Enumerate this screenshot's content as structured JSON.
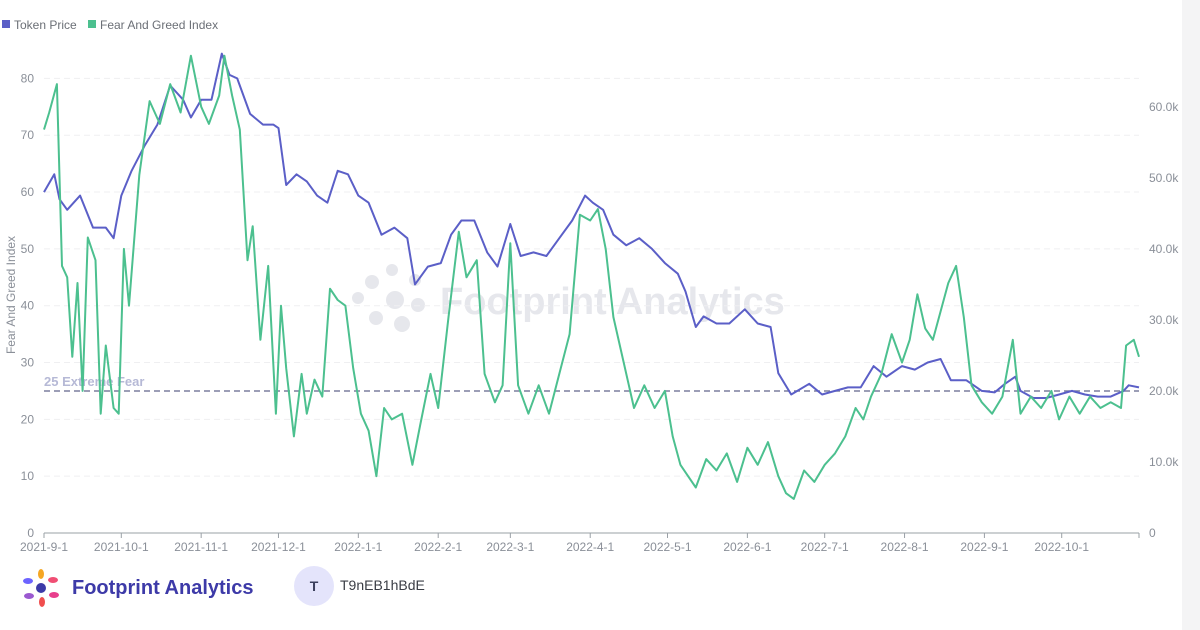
{
  "chart_data": {
    "type": "line",
    "legend_placement": "top-left",
    "grid": true,
    "y_left": {
      "label": "Fear And Greed Index",
      "range": [
        0,
        85
      ],
      "ticks": [
        0,
        10,
        20,
        30,
        40,
        50,
        60,
        70,
        80
      ]
    },
    "y_right": {
      "label": "",
      "range": [
        0,
        68000
      ],
      "ticks": [
        "0",
        "10.0k",
        "20.0k",
        "30.0k",
        "40.0k",
        "50.0k",
        "60.0k"
      ]
    },
    "x_range": [
      "2021-09-01",
      "2022-10-31"
    ],
    "x_ticks": [
      "2021-9-1",
      "2021-10-1",
      "2021-11-1",
      "2021-12-1",
      "2022-1-1",
      "2022-2-1",
      "2022-3-1",
      "2022-4-1",
      "2022-5-1",
      "2022-6-1",
      "2022-7-1",
      "2022-8-1",
      "2022-9-1",
      "2022-10-1"
    ],
    "reference_line": {
      "value": 25,
      "label": "25 Extreme Fear",
      "axis": "left"
    },
    "series": [
      {
        "name": "Token Price",
        "axis": "right",
        "color": "#5b5fc7",
        "points": [
          [
            "2021-09-01",
            48000
          ],
          [
            "2021-09-05",
            50500
          ],
          [
            "2021-09-07",
            47000
          ],
          [
            "2021-09-10",
            45500
          ],
          [
            "2021-09-15",
            47500
          ],
          [
            "2021-09-20",
            43000
          ],
          [
            "2021-09-25",
            43000
          ],
          [
            "2021-09-28",
            41500
          ],
          [
            "2021-10-01",
            47500
          ],
          [
            "2021-10-05",
            51000
          ],
          [
            "2021-10-10",
            54500
          ],
          [
            "2021-10-15",
            57500
          ],
          [
            "2021-10-20",
            63000
          ],
          [
            "2021-10-25",
            61000
          ],
          [
            "2021-10-28",
            58500
          ],
          [
            "2021-11-01",
            61000
          ],
          [
            "2021-11-05",
            61000
          ],
          [
            "2021-11-09",
            67500
          ],
          [
            "2021-11-12",
            64500
          ],
          [
            "2021-11-15",
            64000
          ],
          [
            "2021-11-20",
            59000
          ],
          [
            "2021-11-25",
            57500
          ],
          [
            "2021-11-29",
            57500
          ],
          [
            "2021-12-01",
            57000
          ],
          [
            "2021-12-04",
            49000
          ],
          [
            "2021-12-08",
            50500
          ],
          [
            "2021-12-12",
            49500
          ],
          [
            "2021-12-16",
            47500
          ],
          [
            "2021-12-20",
            46500
          ],
          [
            "2021-12-24",
            51000
          ],
          [
            "2021-12-28",
            50500
          ],
          [
            "2022-01-01",
            47500
          ],
          [
            "2022-01-05",
            46500
          ],
          [
            "2022-01-10",
            42000
          ],
          [
            "2022-01-15",
            43000
          ],
          [
            "2022-01-20",
            41500
          ],
          [
            "2022-01-23",
            35000
          ],
          [
            "2022-01-28",
            37500
          ],
          [
            "2022-02-02",
            38000
          ],
          [
            "2022-02-06",
            42000
          ],
          [
            "2022-02-10",
            44000
          ],
          [
            "2022-02-15",
            44000
          ],
          [
            "2022-02-20",
            39500
          ],
          [
            "2022-02-24",
            37500
          ],
          [
            "2022-03-01",
            43500
          ],
          [
            "2022-03-05",
            39000
          ],
          [
            "2022-03-10",
            39500
          ],
          [
            "2022-03-15",
            39000
          ],
          [
            "2022-03-20",
            41500
          ],
          [
            "2022-03-25",
            44000
          ],
          [
            "2022-03-30",
            47500
          ],
          [
            "2022-04-02",
            46500
          ],
          [
            "2022-04-06",
            45500
          ],
          [
            "2022-04-10",
            42000
          ],
          [
            "2022-04-15",
            40500
          ],
          [
            "2022-04-20",
            41500
          ],
          [
            "2022-04-25",
            40000
          ],
          [
            "2022-04-30",
            38000
          ],
          [
            "2022-05-05",
            36500
          ],
          [
            "2022-05-08",
            34000
          ],
          [
            "2022-05-12",
            29000
          ],
          [
            "2022-05-15",
            30500
          ],
          [
            "2022-05-20",
            29500
          ],
          [
            "2022-05-25",
            29500
          ],
          [
            "2022-05-31",
            31500
          ],
          [
            "2022-06-05",
            29500
          ],
          [
            "2022-06-10",
            29000
          ],
          [
            "2022-06-13",
            22500
          ],
          [
            "2022-06-18",
            19500
          ],
          [
            "2022-06-25",
            21000
          ],
          [
            "2022-06-30",
            19500
          ],
          [
            "2022-07-05",
            20000
          ],
          [
            "2022-07-10",
            20500
          ],
          [
            "2022-07-15",
            20500
          ],
          [
            "2022-07-20",
            23500
          ],
          [
            "2022-07-25",
            22000
          ],
          [
            "2022-07-31",
            23500
          ],
          [
            "2022-08-05",
            23000
          ],
          [
            "2022-08-10",
            24000
          ],
          [
            "2022-08-15",
            24500
          ],
          [
            "2022-08-19",
            21500
          ],
          [
            "2022-08-25",
            21500
          ],
          [
            "2022-08-31",
            20000
          ],
          [
            "2022-09-05",
            19800
          ],
          [
            "2022-09-09",
            21000
          ],
          [
            "2022-09-13",
            22000
          ],
          [
            "2022-09-15",
            20000
          ],
          [
            "2022-09-20",
            19000
          ],
          [
            "2022-09-25",
            19000
          ],
          [
            "2022-09-30",
            19500
          ],
          [
            "2022-10-05",
            20000
          ],
          [
            "2022-10-10",
            19500
          ],
          [
            "2022-10-15",
            19200
          ],
          [
            "2022-10-20",
            19200
          ],
          [
            "2022-10-25",
            20000
          ],
          [
            "2022-10-27",
            20800
          ],
          [
            "2022-10-31",
            20500
          ]
        ]
      },
      {
        "name": "Fear And Greed Index",
        "axis": "left",
        "color": "#4cc08f",
        "points": [
          [
            "2021-09-01",
            71
          ],
          [
            "2021-09-03",
            74
          ],
          [
            "2021-09-06",
            79
          ],
          [
            "2021-09-08",
            47
          ],
          [
            "2021-09-10",
            45
          ],
          [
            "2021-09-12",
            31
          ],
          [
            "2021-09-14",
            44
          ],
          [
            "2021-09-16",
            25
          ],
          [
            "2021-09-18",
            52
          ],
          [
            "2021-09-21",
            48
          ],
          [
            "2021-09-23",
            21
          ],
          [
            "2021-09-25",
            33
          ],
          [
            "2021-09-28",
            22
          ],
          [
            "2021-09-30",
            21
          ],
          [
            "2021-10-02",
            50
          ],
          [
            "2021-10-04",
            40
          ],
          [
            "2021-10-08",
            63
          ],
          [
            "2021-10-12",
            76
          ],
          [
            "2021-10-16",
            72
          ],
          [
            "2021-10-20",
            79
          ],
          [
            "2021-10-24",
            74
          ],
          [
            "2021-10-28",
            84
          ],
          [
            "2021-11-01",
            75
          ],
          [
            "2021-11-04",
            72
          ],
          [
            "2021-11-08",
            77
          ],
          [
            "2021-11-10",
            84
          ],
          [
            "2021-11-13",
            77
          ],
          [
            "2021-11-16",
            71
          ],
          [
            "2021-11-19",
            48
          ],
          [
            "2021-11-21",
            54
          ],
          [
            "2021-11-24",
            34
          ],
          [
            "2021-11-27",
            47
          ],
          [
            "2021-11-30",
            21
          ],
          [
            "2021-12-02",
            40
          ],
          [
            "2021-12-04",
            29
          ],
          [
            "2021-12-07",
            17
          ],
          [
            "2021-12-10",
            28
          ],
          [
            "2021-12-12",
            21
          ],
          [
            "2021-12-15",
            27
          ],
          [
            "2021-12-18",
            24
          ],
          [
            "2021-12-21",
            43
          ],
          [
            "2021-12-24",
            41
          ],
          [
            "2021-12-27",
            40
          ],
          [
            "2021-12-30",
            29
          ],
          [
            "2022-01-02",
            21
          ],
          [
            "2022-01-05",
            18
          ],
          [
            "2022-01-08",
            10
          ],
          [
            "2022-01-11",
            22
          ],
          [
            "2022-01-14",
            20
          ],
          [
            "2022-01-18",
            21
          ],
          [
            "2022-01-22",
            12
          ],
          [
            "2022-01-25",
            19
          ],
          [
            "2022-01-29",
            28
          ],
          [
            "2022-02-01",
            22
          ],
          [
            "2022-02-05",
            38
          ],
          [
            "2022-02-09",
            53
          ],
          [
            "2022-02-12",
            45
          ],
          [
            "2022-02-16",
            48
          ],
          [
            "2022-02-19",
            28
          ],
          [
            "2022-02-23",
            23
          ],
          [
            "2022-02-26",
            26
          ],
          [
            "2022-03-01",
            51
          ],
          [
            "2022-03-04",
            26
          ],
          [
            "2022-03-08",
            21
          ],
          [
            "2022-03-12",
            26
          ],
          [
            "2022-03-16",
            21
          ],
          [
            "2022-03-20",
            28
          ],
          [
            "2022-03-24",
            35
          ],
          [
            "2022-03-28",
            56
          ],
          [
            "2022-04-01",
            55
          ],
          [
            "2022-04-04",
            57
          ],
          [
            "2022-04-07",
            50
          ],
          [
            "2022-04-10",
            38
          ],
          [
            "2022-04-14",
            30
          ],
          [
            "2022-04-18",
            22
          ],
          [
            "2022-04-22",
            26
          ],
          [
            "2022-04-26",
            22
          ],
          [
            "2022-04-30",
            25
          ],
          [
            "2022-05-03",
            17
          ],
          [
            "2022-05-06",
            12
          ],
          [
            "2022-05-09",
            10
          ],
          [
            "2022-05-12",
            8
          ],
          [
            "2022-05-16",
            13
          ],
          [
            "2022-05-20",
            11
          ],
          [
            "2022-05-24",
            14
          ],
          [
            "2022-05-28",
            9
          ],
          [
            "2022-06-01",
            15
          ],
          [
            "2022-06-05",
            12
          ],
          [
            "2022-06-09",
            16
          ],
          [
            "2022-06-13",
            10
          ],
          [
            "2022-06-16",
            7
          ],
          [
            "2022-06-19",
            6
          ],
          [
            "2022-06-23",
            11
          ],
          [
            "2022-06-27",
            9
          ],
          [
            "2022-07-01",
            12
          ],
          [
            "2022-07-05",
            14
          ],
          [
            "2022-07-09",
            17
          ],
          [
            "2022-07-13",
            22
          ],
          [
            "2022-07-16",
            20
          ],
          [
            "2022-07-19",
            24
          ],
          [
            "2022-07-23",
            28
          ],
          [
            "2022-07-27",
            35
          ],
          [
            "2022-07-31",
            30
          ],
          [
            "2022-08-03",
            34
          ],
          [
            "2022-08-06",
            42
          ],
          [
            "2022-08-09",
            36
          ],
          [
            "2022-08-12",
            34
          ],
          [
            "2022-08-15",
            39
          ],
          [
            "2022-08-18",
            44
          ],
          [
            "2022-08-21",
            47
          ],
          [
            "2022-08-24",
            38
          ],
          [
            "2022-08-27",
            26
          ],
          [
            "2022-08-31",
            23
          ],
          [
            "2022-09-04",
            21
          ],
          [
            "2022-09-08",
            24
          ],
          [
            "2022-09-12",
            34
          ],
          [
            "2022-09-15",
            21
          ],
          [
            "2022-09-19",
            24
          ],
          [
            "2022-09-23",
            22
          ],
          [
            "2022-09-27",
            25
          ],
          [
            "2022-09-30",
            20
          ],
          [
            "2022-10-04",
            24
          ],
          [
            "2022-10-08",
            21
          ],
          [
            "2022-10-12",
            24
          ],
          [
            "2022-10-16",
            22
          ],
          [
            "2022-10-20",
            23
          ],
          [
            "2022-10-24",
            22
          ],
          [
            "2022-10-26",
            33
          ],
          [
            "2022-10-29",
            34
          ],
          [
            "2022-10-31",
            31
          ]
        ]
      }
    ]
  },
  "watermark": "Footprint Analytics",
  "footer": {
    "brand": "Footprint Analytics",
    "avatar_initial": "T",
    "username": "T9nEB1hBdE"
  }
}
